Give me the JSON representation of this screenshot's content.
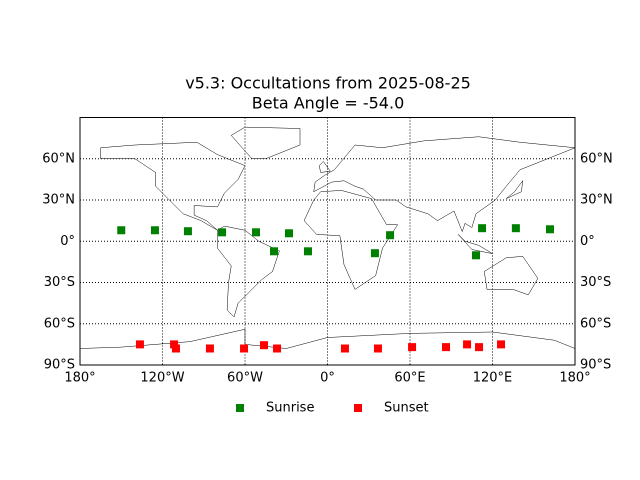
{
  "chart_data": {
    "type": "scatter",
    "title": "v5.3: Occultations from 2025-08-25",
    "subtitle": "Beta Angle = -54.0",
    "xlim": [
      -180,
      180
    ],
    "ylim": [
      -90,
      90
    ],
    "xticks": [
      {
        "value": -180,
        "label": "180°"
      },
      {
        "value": -120,
        "label": "120°W"
      },
      {
        "value": -60,
        "label": "60°W"
      },
      {
        "value": 0,
        "label": "0°"
      },
      {
        "value": 60,
        "label": "60°E"
      },
      {
        "value": 120,
        "label": "120°E"
      },
      {
        "value": 180,
        "label": "180°"
      }
    ],
    "yticks": [
      {
        "value": -90,
        "label": "90°S"
      },
      {
        "value": -60,
        "label": "60°S"
      },
      {
        "value": -30,
        "label": "30°S"
      },
      {
        "value": 0,
        "label": "0°"
      },
      {
        "value": 30,
        "label": "30°N"
      },
      {
        "value": 60,
        "label": "60°N"
      }
    ],
    "grid": true,
    "legend": "bottom",
    "series": [
      {
        "name": "Sunrise",
        "color": "#008000",
        "x": [
          -150,
          -125.5,
          -101.5,
          -76.7,
          -52,
          -38.9,
          -28,
          -14.2,
          34.5,
          45.5,
          108,
          112.4,
          137,
          161.8
        ],
        "y": [
          8,
          8,
          7.3,
          6.5,
          6.5,
          -7.3,
          5.8,
          -7.3,
          -8.7,
          4.4,
          -10.2,
          9.5,
          9.5,
          8.7
        ]
      },
      {
        "name": "Sunset",
        "color": "#ff0000",
        "x": [
          -136.4,
          -111.6,
          -110.2,
          -85.5,
          -60.7,
          -46.2,
          -36.7,
          12.7,
          36.7,
          61.5,
          86.2,
          101.5,
          110.2,
          126.2
        ],
        "y": [
          -75,
          -75,
          -78,
          -78,
          -78,
          -75.6,
          -78,
          -78,
          -78,
          -77,
          -77,
          -75,
          -77,
          -75
        ]
      }
    ]
  }
}
